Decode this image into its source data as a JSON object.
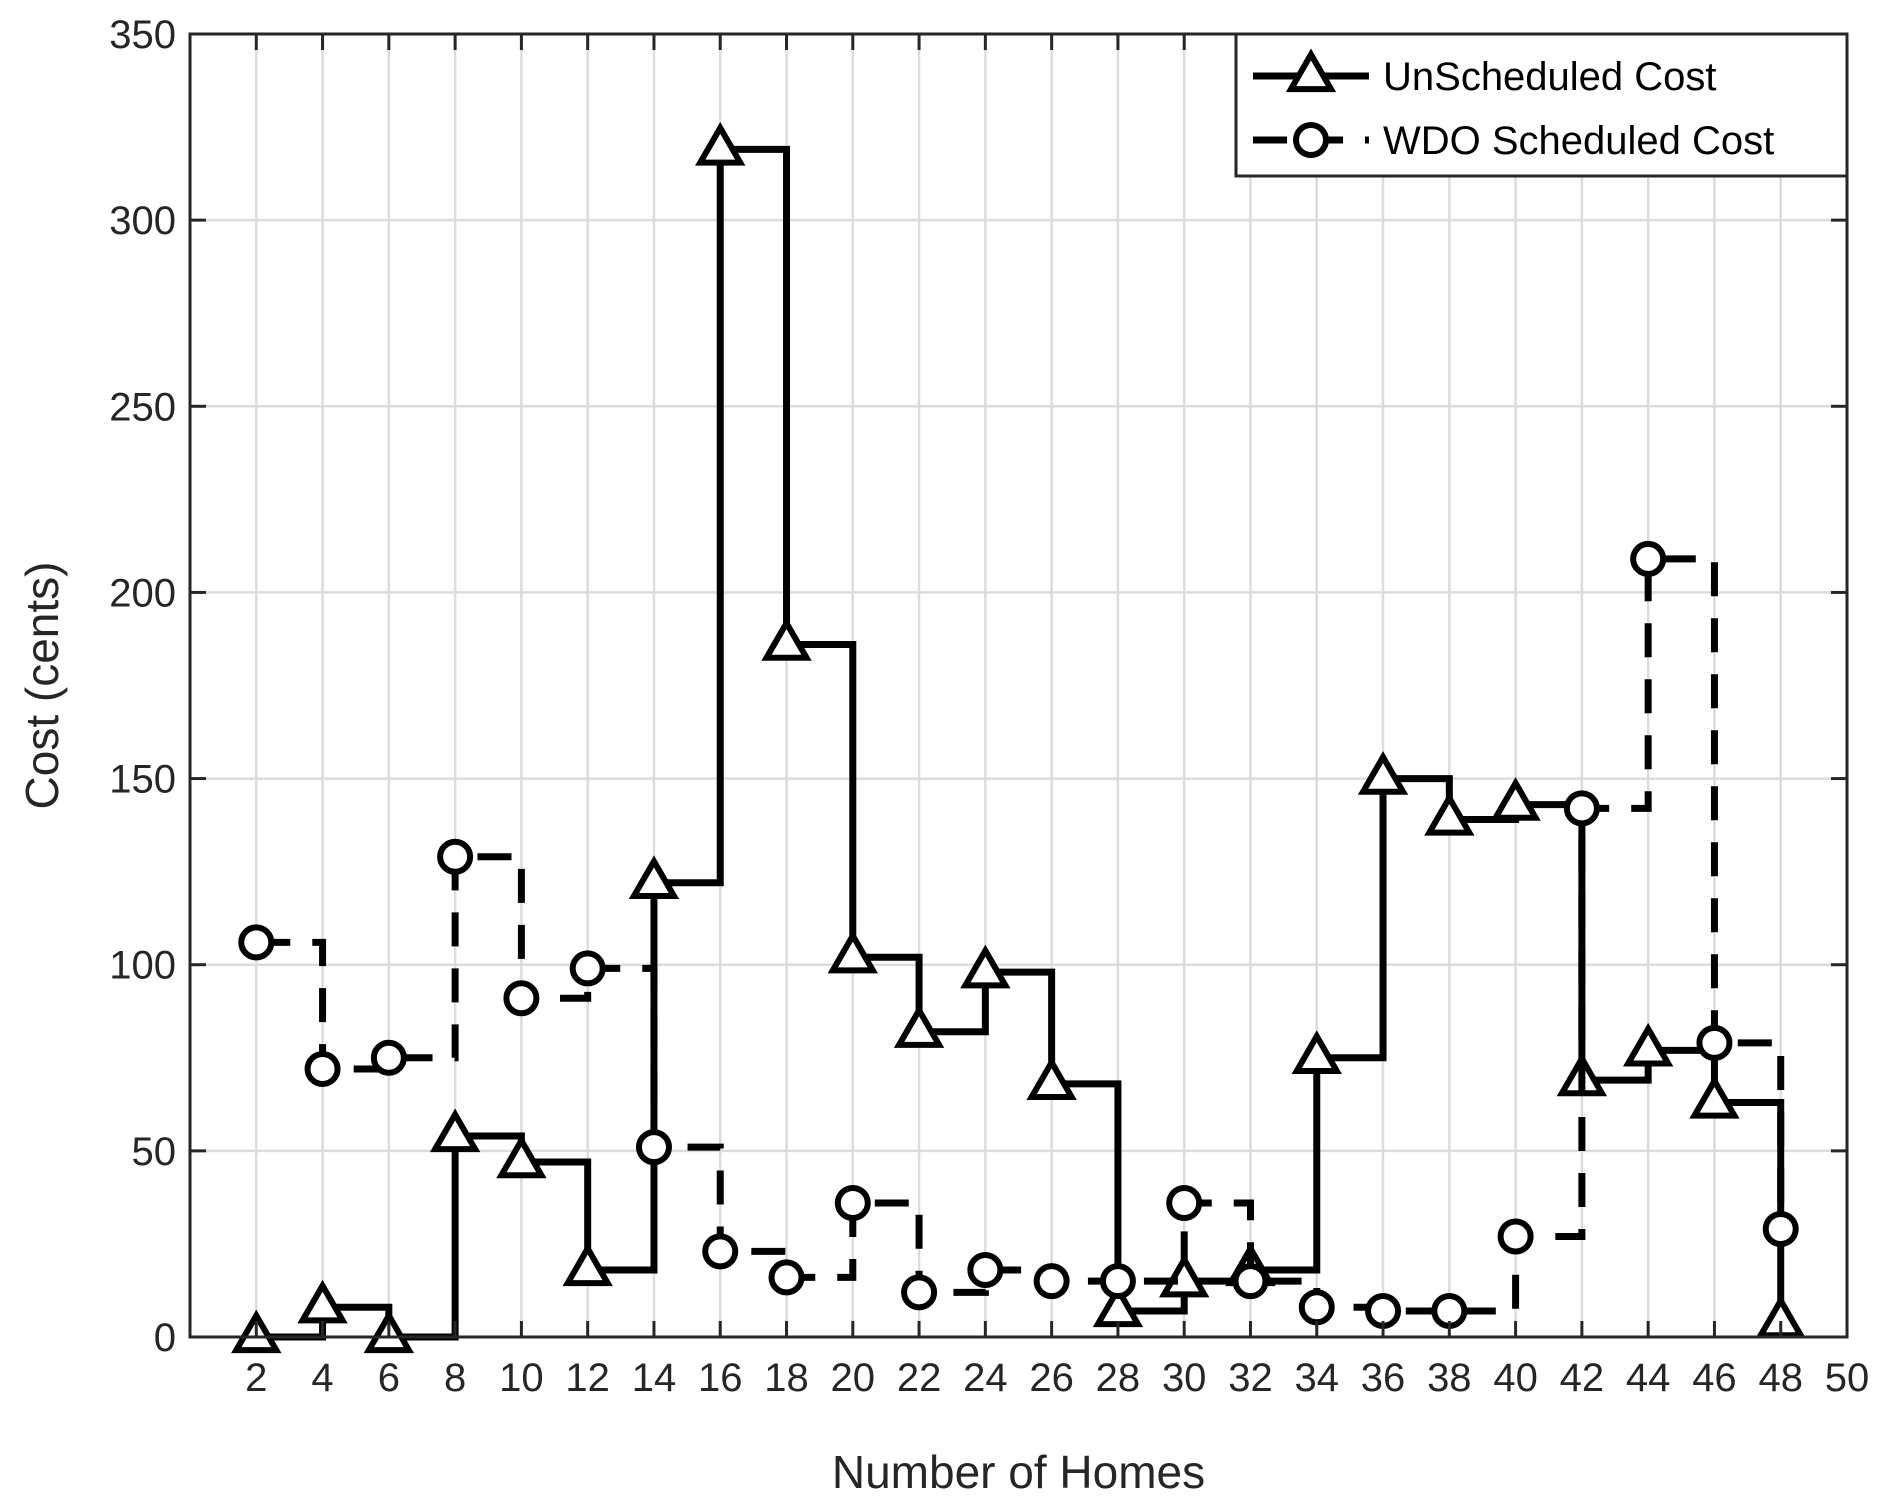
{
  "chart_data": {
    "type": "line",
    "step": true,
    "title": "",
    "xlabel": "Number of Homes",
    "ylabel": "Cost (cents)",
    "xlim": [
      0,
      50
    ],
    "ylim": [
      0,
      350
    ],
    "xticks": [
      2,
      4,
      6,
      8,
      10,
      12,
      14,
      16,
      18,
      20,
      22,
      24,
      26,
      28,
      30,
      32,
      34,
      36,
      38,
      40,
      42,
      44,
      46,
      48,
      50
    ],
    "yticks": [
      0,
      50,
      100,
      150,
      200,
      250,
      300,
      350
    ],
    "grid": true,
    "legend_position": "top-right",
    "x": [
      2,
      4,
      6,
      8,
      10,
      12,
      14,
      16,
      18,
      20,
      22,
      24,
      26,
      28,
      30,
      32,
      34,
      36,
      38,
      40,
      42,
      44,
      46,
      48
    ],
    "series": [
      {
        "name": "UnScheduled Cost",
        "marker": "triangle",
        "line_style": "solid",
        "color": "#000000",
        "values": [
          0,
          8,
          0,
          54,
          47,
          18,
          122,
          319,
          186,
          102,
          82,
          98,
          68,
          7,
          15,
          18,
          75,
          150,
          139,
          143,
          69,
          77,
          63,
          4
        ]
      },
      {
        "name": "WDO Scheduled Cost",
        "marker": "circle",
        "line_style": "dashed",
        "color": "#000000",
        "values": [
          106,
          72,
          75,
          129,
          91,
          99,
          51,
          23,
          16,
          36,
          12,
          18,
          15,
          15,
          36,
          15,
          8,
          7,
          7,
          27,
          142,
          209,
          79,
          29
        ]
      }
    ]
  }
}
